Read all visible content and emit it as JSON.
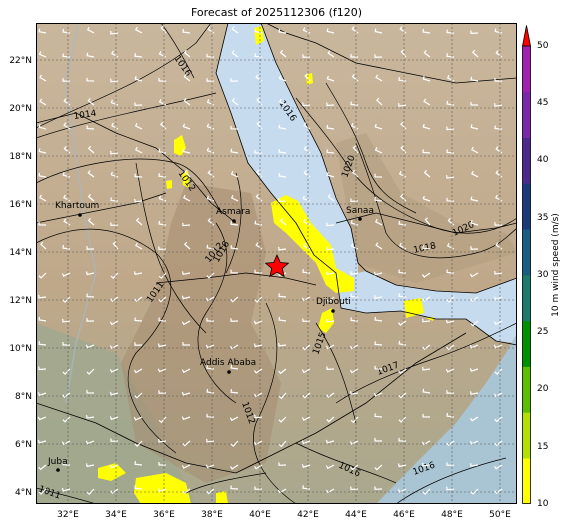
{
  "title": "Forecast of 2025112306 (f120)",
  "lat_labels": [
    "22°N",
    "20°N",
    "18°N",
    "16°N",
    "14°N",
    "12°N",
    "10°N",
    "8°N",
    "6°N",
    "4°N"
  ],
  "lon_labels": [
    "32°E",
    "34°E",
    "36°E",
    "38°E",
    "40°E",
    "42°E",
    "44°E",
    "46°E",
    "48°E",
    "50°E"
  ],
  "cities": [
    {
      "name": "Khartoum"
    },
    {
      "name": "Asmara"
    },
    {
      "name": "Sanaa"
    },
    {
      "name": "Djibouti"
    },
    {
      "name": "Addis Ababa"
    },
    {
      "name": "Juba"
    }
  ],
  "isobar_labels": [
    "1016",
    "1014",
    "1012",
    "1016",
    "1012",
    "1011",
    "1020",
    "1018",
    "1020",
    "1016",
    "1015",
    "1017",
    "1016",
    "1016",
    "1011",
    "1012"
  ],
  "colorbar": {
    "title": "10 m wind speed (m/s)",
    "ticks": [
      "10",
      "15",
      "20",
      "25",
      "30",
      "35",
      "40",
      "45",
      "50"
    ],
    "colors": [
      "#ffff00",
      "#b2e000",
      "#5cc000",
      "#009000",
      "#1e7a6b",
      "#1a5c82",
      "#1c3a78",
      "#4b2a8c",
      "#7a28a8",
      "#a020b0"
    ],
    "extend_color": "#ff0000"
  },
  "colors": {
    "land": "#c2ad8e",
    "sea": "#c6dcee",
    "ocean_south": "#a6c4cc",
    "wind_fill": "#ffff00",
    "star": "#ff0000"
  },
  "marker": {
    "icon": "red-star-icon"
  }
}
